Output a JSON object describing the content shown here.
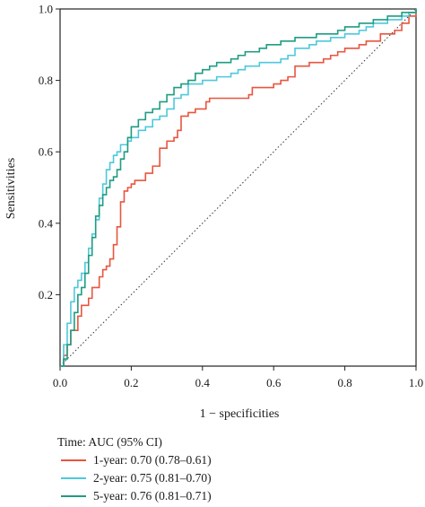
{
  "chart_data": {
    "type": "line",
    "title": "",
    "xlabel": "1 − specificities",
    "ylabel": "Sensitivities",
    "xlim": [
      0,
      1
    ],
    "ylim": [
      0,
      1
    ],
    "x_ticks": [
      "0.0",
      "0.2",
      "0.4",
      "0.6",
      "0.8",
      "1.0"
    ],
    "y_ticks": [
      "0.2",
      "0.4",
      "0.6",
      "0.8",
      "1.0"
    ],
    "grid": false,
    "legend_position": "bottom-left",
    "legend_title": "Time: AUC (95% CI)",
    "reference_line": {
      "style": "dotted",
      "x": [
        0,
        1
      ],
      "y": [
        0,
        1
      ]
    },
    "series": [
      {
        "name": "1-year: 0.70 (0.78–0.61)",
        "color": "#e8553f",
        "x": [
          0,
          0.01,
          0.02,
          0.03,
          0.05,
          0.06,
          0.08,
          0.09,
          0.11,
          0.12,
          0.13,
          0.14,
          0.15,
          0.16,
          0.17,
          0.18,
          0.19,
          0.2,
          0.21,
          0.22,
          0.24,
          0.26,
          0.28,
          0.3,
          0.32,
          0.33,
          0.34,
          0.36,
          0.38,
          0.4,
          0.41,
          0.42,
          0.44,
          0.46,
          0.48,
          0.5,
          0.52,
          0.53,
          0.54,
          0.56,
          0.58,
          0.6,
          0.62,
          0.64,
          0.66,
          0.68,
          0.7,
          0.72,
          0.74,
          0.76,
          0.78,
          0.8,
          0.82,
          0.84,
          0.86,
          0.88,
          0.9,
          0.92,
          0.94,
          0.96,
          0.98,
          1
        ],
        "y": [
          0,
          0.03,
          0.06,
          0.1,
          0.14,
          0.17,
          0.19,
          0.22,
          0.25,
          0.27,
          0.28,
          0.3,
          0.34,
          0.39,
          0.46,
          0.49,
          0.5,
          0.51,
          0.52,
          0.52,
          0.54,
          0.56,
          0.61,
          0.63,
          0.64,
          0.66,
          0.7,
          0.71,
          0.72,
          0.72,
          0.74,
          0.75,
          0.75,
          0.75,
          0.75,
          0.75,
          0.75,
          0.76,
          0.78,
          0.78,
          0.78,
          0.79,
          0.8,
          0.81,
          0.84,
          0.84,
          0.85,
          0.85,
          0.86,
          0.87,
          0.88,
          0.89,
          0.89,
          0.9,
          0.91,
          0.91,
          0.93,
          0.93,
          0.94,
          0.96,
          0.98,
          1
        ]
      },
      {
        "name": "2-year: 0.75 (0.81–0.70)",
        "color": "#4ec8dc",
        "x": [
          0,
          0.01,
          0.02,
          0.03,
          0.04,
          0.05,
          0.06,
          0.07,
          0.08,
          0.09,
          0.1,
          0.11,
          0.12,
          0.13,
          0.14,
          0.15,
          0.16,
          0.17,
          0.18,
          0.19,
          0.2,
          0.22,
          0.24,
          0.26,
          0.28,
          0.3,
          0.32,
          0.34,
          0.36,
          0.38,
          0.4,
          0.42,
          0.44,
          0.46,
          0.48,
          0.5,
          0.52,
          0.54,
          0.56,
          0.58,
          0.6,
          0.62,
          0.64,
          0.66,
          0.68,
          0.7,
          0.72,
          0.74,
          0.76,
          0.78,
          0.8,
          0.82,
          0.84,
          0.86,
          0.88,
          0.9,
          0.92,
          0.94,
          0.96,
          0.98,
          1
        ],
        "y": [
          0,
          0.06,
          0.12,
          0.18,
          0.22,
          0.24,
          0.26,
          0.29,
          0.33,
          0.37,
          0.41,
          0.47,
          0.51,
          0.55,
          0.57,
          0.59,
          0.6,
          0.62,
          0.62,
          0.63,
          0.64,
          0.66,
          0.67,
          0.69,
          0.7,
          0.72,
          0.75,
          0.76,
          0.79,
          0.79,
          0.8,
          0.8,
          0.81,
          0.81,
          0.82,
          0.83,
          0.84,
          0.84,
          0.85,
          0.85,
          0.85,
          0.86,
          0.87,
          0.89,
          0.89,
          0.9,
          0.91,
          0.91,
          0.92,
          0.92,
          0.93,
          0.93,
          0.94,
          0.95,
          0.96,
          0.96,
          0.97,
          0.97,
          0.98,
          0.99,
          1
        ]
      },
      {
        "name": "5-year: 0.76 (0.81–0.71)",
        "color": "#1f9c82",
        "x": [
          0,
          0.01,
          0.02,
          0.03,
          0.04,
          0.05,
          0.06,
          0.07,
          0.08,
          0.09,
          0.1,
          0.11,
          0.12,
          0.13,
          0.14,
          0.15,
          0.16,
          0.17,
          0.18,
          0.19,
          0.2,
          0.22,
          0.24,
          0.26,
          0.28,
          0.3,
          0.32,
          0.34,
          0.36,
          0.38,
          0.4,
          0.42,
          0.44,
          0.46,
          0.48,
          0.5,
          0.52,
          0.54,
          0.56,
          0.58,
          0.6,
          0.62,
          0.64,
          0.66,
          0.68,
          0.7,
          0.72,
          0.74,
          0.76,
          0.78,
          0.8,
          0.82,
          0.84,
          0.86,
          0.88,
          0.9,
          0.92,
          0.94,
          0.96,
          0.98,
          1
        ],
        "y": [
          0,
          0.02,
          0.06,
          0.1,
          0.15,
          0.2,
          0.22,
          0.26,
          0.31,
          0.36,
          0.42,
          0.45,
          0.48,
          0.5,
          0.52,
          0.53,
          0.55,
          0.58,
          0.6,
          0.64,
          0.67,
          0.69,
          0.71,
          0.72,
          0.74,
          0.76,
          0.78,
          0.79,
          0.8,
          0.82,
          0.83,
          0.84,
          0.85,
          0.85,
          0.86,
          0.87,
          0.88,
          0.88,
          0.89,
          0.9,
          0.9,
          0.91,
          0.91,
          0.92,
          0.92,
          0.92,
          0.93,
          0.93,
          0.93,
          0.94,
          0.95,
          0.95,
          0.96,
          0.96,
          0.97,
          0.97,
          0.98,
          0.98,
          0.99,
          0.99,
          1
        ]
      }
    ]
  }
}
